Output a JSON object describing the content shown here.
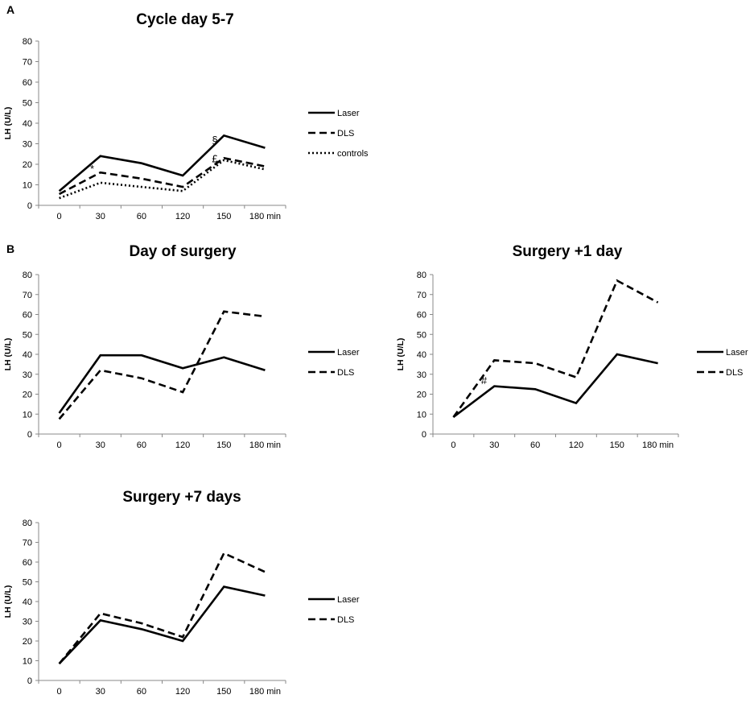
{
  "panel_labels": [
    "A",
    "B"
  ],
  "chart_data": [
    {
      "type": "line",
      "panel": "A",
      "title": "Cycle day 5-7",
      "xlabel": "",
      "ylabel": "LH (U/L)",
      "categories": [
        "0",
        "30",
        "60",
        "120",
        "150",
        "180 min"
      ],
      "ylim": [
        0,
        80
      ],
      "yticks": [
        "0",
        "10",
        "20",
        "30",
        "40",
        "50",
        "60",
        "70",
        "80"
      ],
      "grid": false,
      "legend_placement": "right",
      "series": [
        {
          "name": "Laser",
          "style": "solid",
          "values": [
            7,
            24,
            20.5,
            14.5,
            34,
            28
          ]
        },
        {
          "name": "DLS",
          "style": "dashed",
          "values": [
            5.5,
            16,
            13,
            9,
            23,
            19
          ]
        },
        {
          "name": "controls",
          "style": "dotted",
          "values": [
            3.5,
            11,
            9,
            7,
            22,
            17.5
          ]
        }
      ],
      "annotations": [
        {
          "text": "*",
          "x_index": 0.8,
          "y": 16
        },
        {
          "text": "§",
          "x_index": 3.78,
          "y": 30
        },
        {
          "text": "£",
          "x_index": 3.78,
          "y": 21
        }
      ]
    },
    {
      "type": "line",
      "panel": "B",
      "title": "Day of surgery",
      "xlabel": "",
      "ylabel": "LH (U/L)",
      "categories": [
        "0",
        "30",
        "60",
        "120",
        "150",
        "180 min"
      ],
      "ylim": [
        0,
        80
      ],
      "yticks": [
        "0",
        "10",
        "20",
        "30",
        "40",
        "50",
        "60",
        "70",
        "80"
      ],
      "grid": false,
      "legend_placement": "right",
      "series": [
        {
          "name": "Laser",
          "style": "solid",
          "values": [
            10.5,
            39.5,
            39.5,
            33,
            38.5,
            32
          ]
        },
        {
          "name": "DLS",
          "style": "dashed",
          "values": [
            7.5,
            32,
            28,
            21,
            61.5,
            59
          ]
        }
      ],
      "annotations": []
    },
    {
      "type": "line",
      "panel": "",
      "title": "Surgery +1 day",
      "xlabel": "",
      "ylabel": "LH (U/L)",
      "categories": [
        "0",
        "30",
        "60",
        "120",
        "150",
        "180 min"
      ],
      "ylim": [
        0,
        80
      ],
      "yticks": [
        "0",
        "10",
        "20",
        "30",
        "40",
        "50",
        "60",
        "70",
        "80"
      ],
      "grid": false,
      "legend_placement": "right",
      "series": [
        {
          "name": "Laser",
          "style": "solid",
          "values": [
            8.5,
            24,
            22.5,
            15.5,
            40,
            35.5
          ]
        },
        {
          "name": "DLS",
          "style": "dashed",
          "values": [
            8.5,
            37,
            35.5,
            28.5,
            77,
            66
          ]
        }
      ],
      "annotations": [
        {
          "text": "#",
          "x_index": 0.75,
          "y": 25
        }
      ]
    },
    {
      "type": "line",
      "panel": "",
      "title": "Surgery +7 days",
      "xlabel": "",
      "ylabel": "LH (U/L)",
      "categories": [
        "0",
        "30",
        "60",
        "120",
        "150",
        "180 min"
      ],
      "ylim": [
        0,
        80
      ],
      "yticks": [
        "0",
        "10",
        "20",
        "30",
        "40",
        "50",
        "60",
        "70",
        "80"
      ],
      "grid": false,
      "legend_placement": "right",
      "series": [
        {
          "name": "Laser",
          "style": "solid",
          "values": [
            8.5,
            30.5,
            26,
            20,
            47.5,
            43
          ]
        },
        {
          "name": "DLS",
          "style": "dashed",
          "values": [
            8.5,
            34,
            29,
            22,
            64.5,
            55
          ]
        }
      ],
      "annotations": []
    }
  ]
}
